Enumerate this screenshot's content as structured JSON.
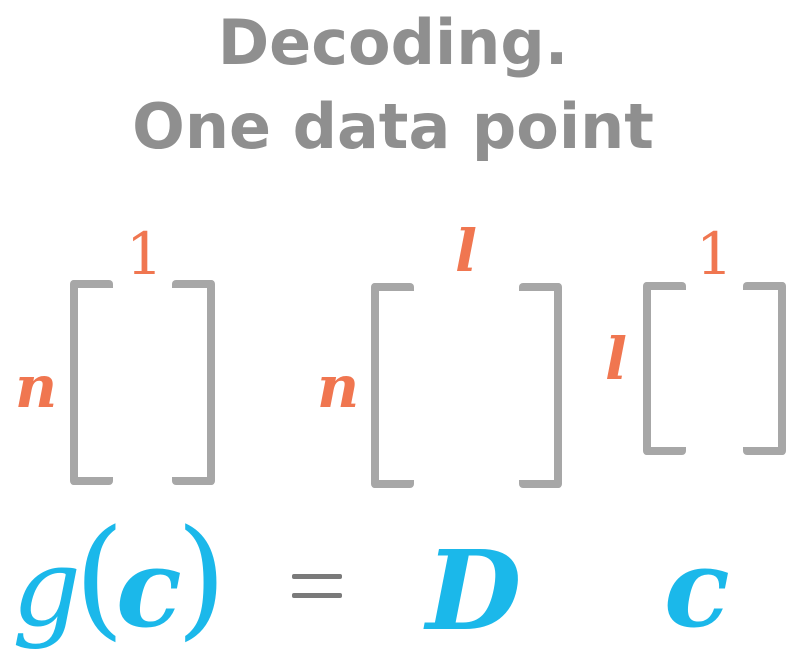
{
  "heading": {
    "line1": "Decoding.",
    "line2": "One data point"
  },
  "matrices": {
    "output": {
      "cols": "1",
      "rows": "n"
    },
    "decoder": {
      "cols": "l",
      "rows": "n"
    },
    "code": {
      "cols": "1",
      "rows": "l"
    }
  },
  "equation": {
    "function_name": "g",
    "open_paren": "(",
    "argument": "c",
    "close_paren": ")",
    "equals": "=",
    "matrix": "D",
    "vector": "c"
  },
  "colors": {
    "heading": "#8f8f8f",
    "dimension": "#f07650",
    "bracket": "#a7a7a7",
    "equation": "#1bb8ea",
    "equals": "#7a7a7a"
  }
}
